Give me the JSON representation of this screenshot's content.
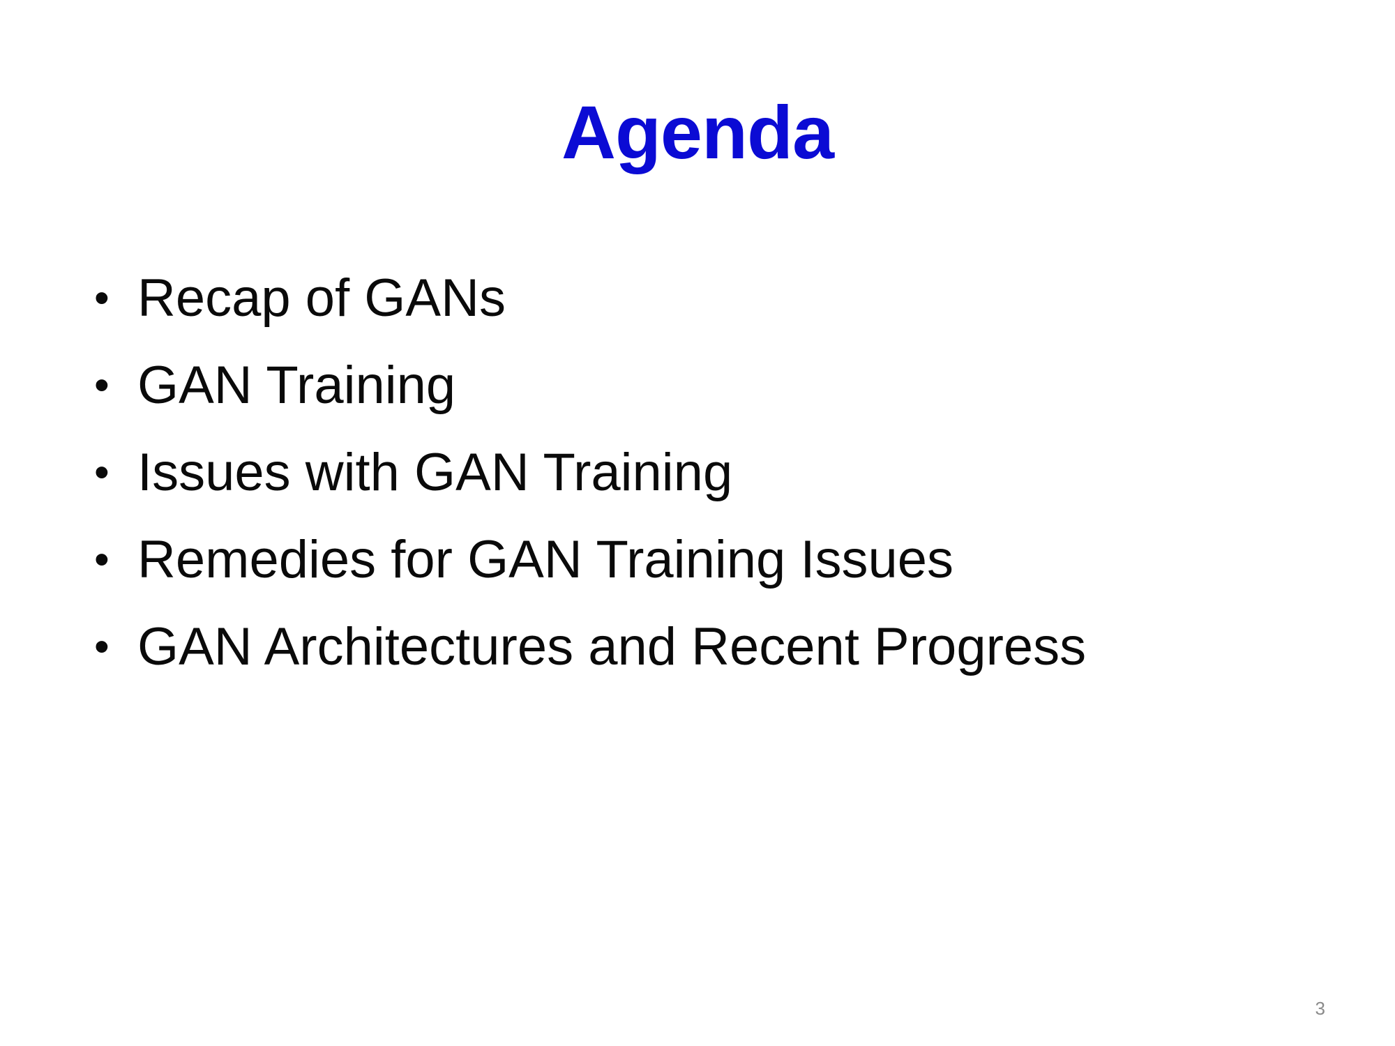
{
  "slide": {
    "title": "Agenda",
    "title_color": "#0b0bd4",
    "bullet_glyph": "•",
    "items": [
      "Recap of GANs",
      "GAN Training",
      "Issues with GAN Training",
      "Remedies for GAN Training Issues",
      "GAN Architectures and Recent Progress"
    ],
    "page_number": "3"
  }
}
